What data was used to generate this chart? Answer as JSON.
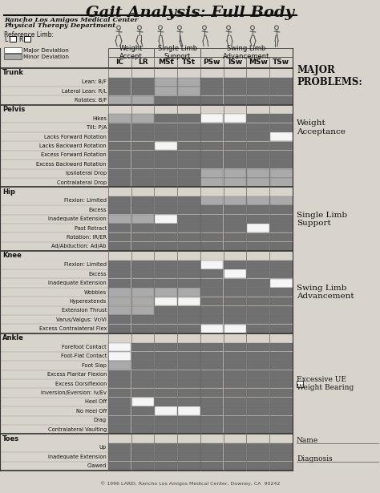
{
  "title": "Gait Analysis: Full Body",
  "subtitle1": "Rancho Los Amigos Medical Center",
  "subtitle2": "Physical Therapy Department",
  "col_headers": [
    "IC",
    "LR",
    "MSt",
    "TSt",
    "PSw",
    "ISw",
    "MSw",
    "TSw"
  ],
  "bg_color": "#d8d4cc",
  "body_sections": [
    {
      "name": "Trunk",
      "rows": [
        {
          "label": "Lean: B/F",
          "cells": [
            2,
            2,
            1,
            1,
            2,
            2,
            2,
            2
          ]
        },
        {
          "label": "Lateral Lean: R/L",
          "cells": [
            2,
            2,
            1,
            1,
            2,
            2,
            2,
            2
          ]
        },
        {
          "label": "Rotates: B/F",
          "cells": [
            1,
            1,
            2,
            2,
            2,
            2,
            2,
            2
          ]
        }
      ]
    },
    {
      "name": "Pelvis",
      "rows": [
        {
          "label": "Hikes",
          "cells": [
            1,
            1,
            2,
            2,
            0,
            0,
            2,
            2
          ]
        },
        {
          "label": "Tilt: P/A",
          "cells": [
            2,
            2,
            2,
            2,
            2,
            2,
            2,
            2
          ]
        },
        {
          "label": "Lacks Forward Rotation",
          "cells": [
            2,
            2,
            2,
            2,
            2,
            2,
            2,
            0
          ]
        },
        {
          "label": "Lacks Backward Rotation",
          "cells": [
            2,
            2,
            0,
            2,
            2,
            2,
            2,
            2
          ]
        },
        {
          "label": "Excess Forward Rotation",
          "cells": [
            2,
            2,
            2,
            2,
            2,
            2,
            2,
            2
          ]
        },
        {
          "label": "Excess Backward Rotation",
          "cells": [
            2,
            2,
            2,
            2,
            2,
            2,
            2,
            2
          ]
        },
        {
          "label": "Ipsilateral Drop",
          "cells": [
            2,
            2,
            2,
            2,
            1,
            1,
            1,
            1
          ]
        },
        {
          "label": "Contralateral Drop",
          "cells": [
            2,
            2,
            2,
            2,
            1,
            1,
            1,
            1
          ]
        }
      ]
    },
    {
      "name": "Hip",
      "rows": [
        {
          "label": "Flexion: Limited",
          "cells": [
            2,
            2,
            2,
            2,
            1,
            1,
            1,
            1
          ]
        },
        {
          "label": "Excess",
          "cells": [
            2,
            2,
            2,
            2,
            2,
            2,
            2,
            2
          ]
        },
        {
          "label": "Inadequate Extension",
          "cells": [
            1,
            1,
            0,
            2,
            2,
            2,
            2,
            2
          ]
        },
        {
          "label": "Past Retract",
          "cells": [
            2,
            2,
            2,
            2,
            2,
            2,
            0,
            2
          ]
        },
        {
          "label": "Rotation: IR/ER",
          "cells": [
            2,
            2,
            2,
            2,
            2,
            2,
            2,
            2
          ]
        },
        {
          "label": "Ad/Abduction: Ad/Ab",
          "cells": [
            2,
            2,
            2,
            2,
            2,
            2,
            2,
            2
          ]
        }
      ]
    },
    {
      "name": "Knee",
      "rows": [
        {
          "label": "Flexion: Limited",
          "cells": [
            2,
            2,
            2,
            2,
            0,
            2,
            2,
            2
          ]
        },
        {
          "label": "Excess",
          "cells": [
            2,
            2,
            2,
            2,
            2,
            0,
            2,
            2
          ]
        },
        {
          "label": "Inadequate Extension",
          "cells": [
            2,
            2,
            2,
            2,
            2,
            2,
            2,
            0
          ]
        },
        {
          "label": "Wobbles",
          "cells": [
            1,
            1,
            1,
            1,
            2,
            2,
            2,
            2
          ]
        },
        {
          "label": "Hyperextends",
          "cells": [
            1,
            1,
            0,
            0,
            2,
            2,
            2,
            2
          ]
        },
        {
          "label": "Extension Thrust",
          "cells": [
            1,
            1,
            2,
            2,
            2,
            2,
            2,
            2
          ]
        },
        {
          "label": "Varus/Valgus: Vr/Vl",
          "cells": [
            2,
            2,
            2,
            2,
            2,
            2,
            2,
            2
          ]
        },
        {
          "label": "Excess Contralateral Flex",
          "cells": [
            2,
            2,
            2,
            2,
            0,
            0,
            2,
            2
          ]
        }
      ]
    },
    {
      "name": "Ankle",
      "rows": [
        {
          "label": "Forefoot Contact",
          "cells": [
            0,
            2,
            2,
            2,
            2,
            2,
            2,
            2
          ]
        },
        {
          "label": "Foot-Flat Contact",
          "cells": [
            0,
            2,
            2,
            2,
            2,
            2,
            2,
            2
          ]
        },
        {
          "label": "Foot Slap",
          "cells": [
            1,
            2,
            2,
            2,
            2,
            2,
            2,
            2
          ]
        },
        {
          "label": "Excess Plantar Flexion",
          "cells": [
            2,
            2,
            2,
            2,
            2,
            2,
            2,
            2
          ]
        },
        {
          "label": "Excess Dorsiflexion",
          "cells": [
            2,
            2,
            2,
            2,
            2,
            2,
            2,
            2
          ]
        },
        {
          "label": "Inversion/Eversion: Iv/Ev",
          "cells": [
            2,
            2,
            2,
            2,
            2,
            2,
            2,
            2
          ]
        },
        {
          "label": "Heel Off",
          "cells": [
            2,
            0,
            2,
            2,
            2,
            2,
            2,
            2
          ]
        },
        {
          "label": "No Heel Off",
          "cells": [
            2,
            2,
            0,
            0,
            2,
            2,
            2,
            2
          ]
        },
        {
          "label": "Drag",
          "cells": [
            2,
            2,
            2,
            2,
            2,
            2,
            2,
            2
          ]
        },
        {
          "label": "Contralateral Vaulting",
          "cells": [
            2,
            2,
            2,
            2,
            2,
            2,
            2,
            2
          ]
        }
      ]
    },
    {
      "name": "Toes",
      "rows": [
        {
          "label": "Up",
          "cells": [
            2,
            2,
            2,
            2,
            2,
            2,
            2,
            2
          ]
        },
        {
          "label": "Inadequate Extension",
          "cells": [
            2,
            2,
            2,
            2,
            2,
            2,
            2,
            2
          ]
        },
        {
          "label": "Clawed",
          "cells": [
            2,
            2,
            2,
            2,
            2,
            2,
            2,
            2
          ]
        }
      ]
    }
  ],
  "color_white": "#f5f5f5",
  "color_light_gray": "#aaaaaa",
  "color_dark_gray": "#707070",
  "color_cell_border": "#888888",
  "footer": "© 1996 LAREI, Rancho Los Amigos Medical Center, Downey, CA  90242"
}
